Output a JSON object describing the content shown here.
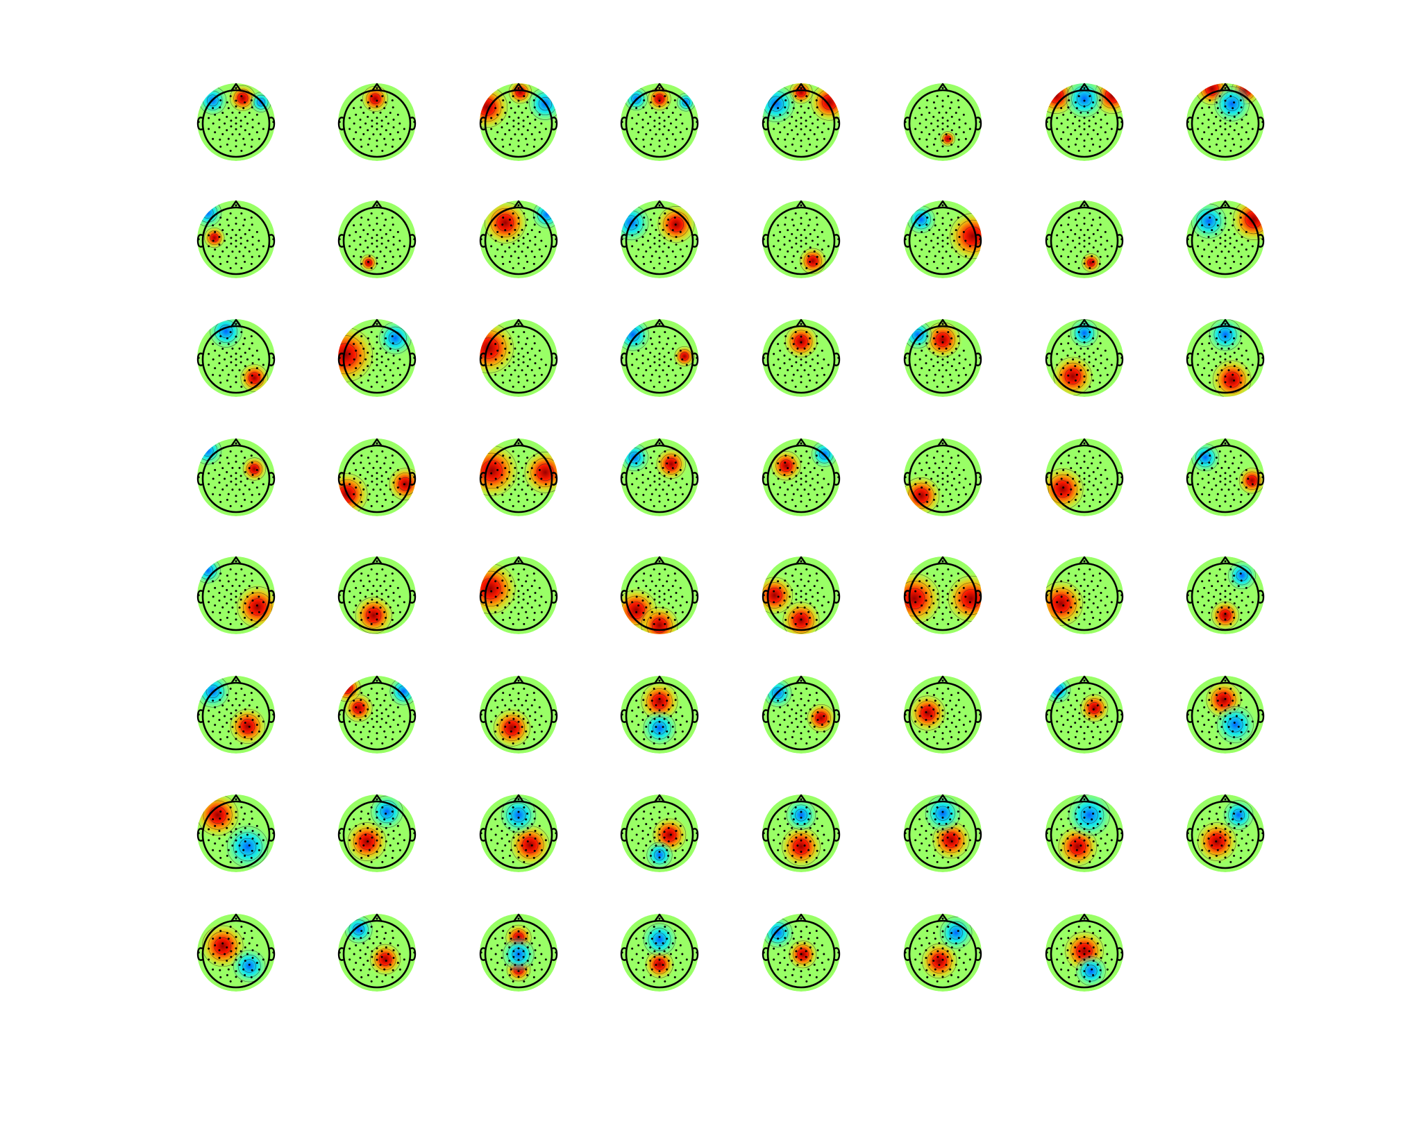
{
  "chart_data": {
    "type": "topoplot-grid",
    "title": "",
    "grid": {
      "rows": 8,
      "columns": 8,
      "count": 63
    },
    "colormap": "jet",
    "value_range": [
      -1,
      1
    ],
    "electrodes": 64,
    "note_colors": {
      "negative": "#1fd3f5",
      "neutral": "#9bf46a",
      "positive": "#c8101a"
    },
    "maps": [
      {
        "pos": [
          [
            0.2,
            -0.72,
            0.28
          ]
        ],
        "neg": [
          [
            -0.7,
            -0.65,
            0.3
          ],
          [
            0.75,
            -0.6,
            0.22
          ]
        ]
      },
      {
        "pos": [
          [
            -0.05,
            -0.7,
            0.28
          ]
        ],
        "neg": []
      },
      {
        "pos": [
          [
            -0.95,
            -0.45,
            0.45
          ],
          [
            0.05,
            -0.9,
            0.25
          ]
        ],
        "neg": [
          [
            0.8,
            -0.55,
            0.35
          ]
        ]
      },
      {
        "pos": [
          [
            0.0,
            -0.7,
            0.25
          ]
        ],
        "neg": [
          [
            -0.7,
            -0.7,
            0.25
          ],
          [
            0.8,
            -0.6,
            0.2
          ]
        ]
      },
      {
        "pos": [
          [
            0.85,
            -0.6,
            0.4
          ],
          [
            0.0,
            -0.9,
            0.25
          ]
        ],
        "neg": [
          [
            -0.75,
            -0.55,
            0.4
          ]
        ]
      },
      {
        "pos": [
          [
            0.15,
            0.5,
            0.16
          ]
        ],
        "neg": []
      },
      {
        "pos": [
          [
            -0.85,
            -0.8,
            0.4
          ],
          [
            0.85,
            -0.8,
            0.4
          ]
        ],
        "neg": [
          [
            0.0,
            -0.7,
            0.4
          ]
        ]
      },
      {
        "pos": [
          [
            -0.4,
            -1.0,
            0.35
          ],
          [
            0.6,
            -0.95,
            0.3
          ]
        ],
        "neg": [
          [
            0.2,
            -0.55,
            0.38
          ]
        ]
      },
      {
        "pos": [
          [
            -0.65,
            -0.05,
            0.22
          ]
        ],
        "neg": [
          [
            -0.85,
            -0.8,
            0.3
          ]
        ]
      },
      {
        "pos": [
          [
            -0.25,
            0.7,
            0.18
          ]
        ],
        "neg": []
      },
      {
        "pos": [
          [
            -0.4,
            -0.5,
            0.45
          ]
        ],
        "neg": [
          [
            0.85,
            -0.75,
            0.3
          ]
        ]
      },
      {
        "pos": [
          [
            0.5,
            -0.45,
            0.4
          ]
        ],
        "neg": [
          [
            -0.85,
            -0.5,
            0.38
          ]
        ]
      },
      {
        "pos": [
          [
            0.35,
            0.65,
            0.28
          ]
        ],
        "neg": []
      },
      {
        "pos": [
          [
            0.9,
            -0.1,
            0.5
          ]
        ],
        "neg": [
          [
            -0.65,
            -0.6,
            0.3
          ]
        ]
      },
      {
        "pos": [
          [
            0.2,
            0.7,
            0.2
          ]
        ],
        "neg": []
      },
      {
        "pos": [
          [
            0.85,
            -0.6,
            0.45
          ]
        ],
        "neg": [
          [
            -0.5,
            -0.55,
            0.38
          ]
        ]
      },
      {
        "pos": [
          [
            0.55,
            0.6,
            0.3
          ]
        ],
        "neg": [
          [
            -0.3,
            -0.8,
            0.35
          ]
        ]
      },
      {
        "pos": [
          [
            -0.95,
            -0.1,
            0.6
          ]
        ],
        "neg": [
          [
            0.55,
            -0.6,
            0.35
          ]
        ]
      },
      {
        "pos": [
          [
            -0.9,
            -0.3,
            0.55
          ]
        ],
        "neg": []
      },
      {
        "pos": [
          [
            0.75,
            -0.05,
            0.22
          ]
        ],
        "neg": [
          [
            -0.8,
            -0.7,
            0.35
          ]
        ]
      },
      {
        "pos": [
          [
            0.0,
            -0.5,
            0.35
          ]
        ],
        "neg": []
      },
      {
        "pos": [
          [
            0.0,
            -0.55,
            0.38
          ]
        ],
        "neg": [
          [
            -0.75,
            -0.7,
            0.3
          ]
        ]
      },
      {
        "pos": [
          [
            -0.35,
            0.55,
            0.42
          ]
        ],
        "neg": [
          [
            0.0,
            -0.75,
            0.3
          ]
        ]
      },
      {
        "pos": [
          [
            0.2,
            0.65,
            0.42
          ]
        ],
        "neg": [
          [
            0.0,
            -0.7,
            0.35
          ]
        ]
      },
      {
        "pos": [
          [
            0.55,
            -0.25,
            0.25
          ]
        ],
        "neg": [
          [
            -0.85,
            -0.8,
            0.3
          ]
        ]
      },
      {
        "pos": [
          [
            -0.9,
            0.5,
            0.45
          ],
          [
            0.85,
            0.2,
            0.35
          ]
        ],
        "neg": []
      },
      {
        "pos": [
          [
            -0.8,
            -0.2,
            0.55
          ],
          [
            0.8,
            -0.15,
            0.45
          ]
        ],
        "neg": []
      },
      {
        "pos": [
          [
            0.35,
            -0.4,
            0.32
          ]
        ],
        "neg": [
          [
            -0.75,
            -0.6,
            0.3
          ]
        ]
      },
      {
        "pos": [
          [
            -0.45,
            -0.35,
            0.32
          ]
        ],
        "neg": [
          [
            0.7,
            -0.7,
            0.28
          ]
        ]
      },
      {
        "pos": [
          [
            -0.65,
            0.55,
            0.4
          ]
        ],
        "neg": []
      },
      {
        "pos": [
          [
            -0.65,
            0.35,
            0.45
          ]
        ],
        "neg": []
      },
      {
        "pos": [
          [
            0.8,
            0.1,
            0.28
          ]
        ],
        "neg": [
          [
            -0.6,
            -0.6,
            0.3
          ]
        ]
      },
      {
        "pos": [
          [
            0.65,
            0.35,
            0.45
          ]
        ],
        "neg": [
          [
            -0.85,
            -0.75,
            0.28
          ]
        ]
      },
      {
        "pos": [
          [
            -0.1,
            0.6,
            0.4
          ]
        ],
        "neg": []
      },
      {
        "pos": [
          [
            -0.85,
            -0.2,
            0.55
          ]
        ],
        "neg": []
      },
      {
        "pos": [
          [
            -0.7,
            0.45,
            0.45
          ],
          [
            0.0,
            0.9,
            0.4
          ]
        ],
        "neg": []
      },
      {
        "pos": [
          [
            0.0,
            0.75,
            0.4
          ],
          [
            -0.8,
            0.0,
            0.4
          ]
        ],
        "neg": []
      },
      {
        "pos": [
          [
            -0.85,
            0.1,
            0.55
          ],
          [
            0.85,
            0.1,
            0.5
          ]
        ],
        "neg": []
      },
      {
        "pos": [
          [
            -0.7,
            0.25,
            0.48
          ]
        ],
        "neg": []
      },
      {
        "pos": [
          [
            0.0,
            0.6,
            0.3
          ]
        ],
        "neg": [
          [
            0.5,
            -0.6,
            0.3
          ]
        ]
      },
      {
        "pos": [
          [
            0.35,
            0.35,
            0.38
          ]
        ],
        "neg": [
          [
            -0.7,
            -0.7,
            0.35
          ]
        ]
      },
      {
        "pos": [
          [
            -0.55,
            -0.2,
            0.3
          ],
          [
            -0.9,
            -0.8,
            0.3
          ]
        ],
        "neg": [
          [
            0.8,
            -0.7,
            0.3
          ]
        ]
      },
      {
        "pos": [
          [
            -0.2,
            0.4,
            0.4
          ]
        ],
        "neg": []
      },
      {
        "pos": [
          [
            0.0,
            -0.4,
            0.4
          ]
        ],
        "neg": [
          [
            0.0,
            0.4,
            0.35
          ]
        ]
      },
      {
        "pos": [
          [
            0.6,
            0.1,
            0.3
          ]
        ],
        "neg": [
          [
            -0.7,
            -0.65,
            0.3
          ]
        ]
      },
      {
        "pos": [
          [
            -0.45,
            -0.05,
            0.38
          ]
        ],
        "neg": []
      },
      {
        "pos": [
          [
            0.3,
            -0.2,
            0.3
          ]
        ],
        "neg": [
          [
            -0.8,
            -0.75,
            0.28
          ]
        ]
      },
      {
        "pos": [
          [
            -0.05,
            -0.45,
            0.38
          ]
        ],
        "neg": [
          [
            0.3,
            0.3,
            0.4
          ]
        ]
      },
      {
        "pos": [
          [
            -0.55,
            -0.55,
            0.45
          ]
        ],
        "neg": [
          [
            0.35,
            0.4,
            0.45
          ]
        ]
      },
      {
        "pos": [
          [
            -0.3,
            0.25,
            0.42
          ]
        ],
        "neg": [
          [
            0.3,
            -0.65,
            0.35
          ]
        ]
      },
      {
        "pos": [
          [
            0.35,
            0.35,
            0.42
          ]
        ],
        "neg": [
          [
            0.0,
            -0.55,
            0.38
          ]
        ]
      },
      {
        "pos": [
          [
            0.3,
            0.05,
            0.36
          ]
        ],
        "neg": [
          [
            0.0,
            0.65,
            0.28
          ]
        ]
      },
      {
        "pos": [
          [
            0.0,
            0.4,
            0.42
          ]
        ],
        "neg": [
          [
            0.0,
            -0.55,
            0.32
          ]
        ]
      },
      {
        "pos": [
          [
            0.25,
            0.2,
            0.4
          ]
        ],
        "neg": [
          [
            0.0,
            -0.6,
            0.38
          ]
        ]
      },
      {
        "pos": [
          [
            -0.2,
            0.4,
            0.42
          ]
        ],
        "neg": [
          [
            0.15,
            -0.55,
            0.45
          ]
        ]
      },
      {
        "pos": [
          [
            -0.25,
            0.25,
            0.42
          ]
        ],
        "neg": [
          [
            0.4,
            -0.55,
            0.32
          ]
        ]
      },
      {
        "pos": [
          [
            -0.4,
            -0.2,
            0.45
          ]
        ],
        "neg": [
          [
            0.4,
            0.4,
            0.35
          ]
        ]
      },
      {
        "pos": [
          [
            0.25,
            0.2,
            0.33
          ]
        ],
        "neg": [
          [
            -0.55,
            -0.7,
            0.3
          ]
        ]
      },
      {
        "pos": [
          [
            0.0,
            -0.45,
            0.28
          ],
          [
            0.0,
            0.5,
            0.26
          ]
        ],
        "neg": [
          [
            0.0,
            0.05,
            0.34
          ]
        ]
      },
      {
        "pos": [
          [
            0.0,
            0.35,
            0.3
          ]
        ],
        "neg": [
          [
            0.0,
            -0.4,
            0.35
          ]
        ]
      },
      {
        "pos": [
          [
            0.05,
            0.05,
            0.3
          ]
        ],
        "neg": [
          [
            -0.7,
            -0.6,
            0.32
          ]
        ]
      },
      {
        "pos": [
          [
            -0.1,
            0.25,
            0.38
          ]
        ],
        "neg": [
          [
            0.4,
            -0.6,
            0.35
          ]
        ]
      },
      {
        "pos": [
          [
            0.0,
            -0.05,
            0.42
          ]
        ],
        "neg": [
          [
            0.2,
            0.55,
            0.32
          ]
        ]
      }
    ]
  }
}
